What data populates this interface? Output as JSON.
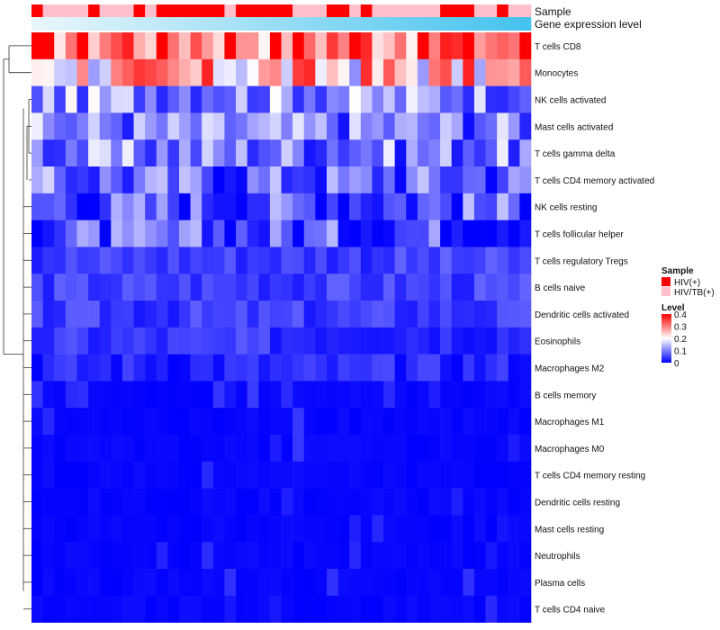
{
  "chart_data": {
    "type": "heatmap",
    "title": "",
    "annotation_tracks": [
      {
        "name": "Sample"
      },
      {
        "name": "Gene expression level"
      }
    ],
    "rows": [
      "T cells CD8",
      "Monocytes",
      "NK cells activated",
      "Mast cells activated",
      "T cells gamma delta",
      "T cells CD4 memory activated",
      "NK cells resting",
      "T cells follicular helper",
      "T cells regulatory  Tregs",
      "B cells naive",
      "Dendritic cells activated",
      "Eosinophils",
      "Macrophages M2",
      "B cells memory",
      "Macrophages M1",
      "Macrophages M0",
      "T cells CD4 memory resting",
      "Dendritic cells resting",
      "Mast cells resting",
      "Neutrophils",
      "Plasma cells",
      "T cells CD4 naive"
    ],
    "n_samples": 44,
    "sample_groups": [
      "HIV(+)",
      "HIV/TB(+)",
      "HIV/TB(+)",
      "HIV/TB(+)",
      "HIV/TB(+)",
      "HIV(+)",
      "HIV/TB(+)",
      "HIV/TB(+)",
      "HIV/TB(+)",
      "HIV(+)",
      "HIV/TB(+)",
      "HIV(+)",
      "HIV(+)",
      "HIV(+)",
      "HIV(+)",
      "HIV(+)",
      "HIV(+)",
      "HIV/TB(+)",
      "HIV(+)",
      "HIV(+)",
      "HIV(+)",
      "HIV(+)",
      "HIV(+)",
      "HIV/TB(+)",
      "HIV/TB(+)",
      "HIV/TB(+)",
      "HIV(+)",
      "HIV(+)",
      "HIV/TB(+)",
      "HIV(+)",
      "HIV/TB(+)",
      "HIV/TB(+)",
      "HIV/TB(+)",
      "HIV/TB(+)",
      "HIV/TB(+)",
      "HIV/TB(+)",
      "HIV(+)",
      "HIV(+)",
      "HIV(+)",
      "HIV/TB(+)",
      "HIV/TB(+)",
      "HIV(+)",
      "HIV/TB(+)",
      "HIV/TB(+)"
    ],
    "row_means": [
      0.34,
      0.24,
      0.12,
      0.1,
      0.1,
      0.08,
      0.07,
      0.06,
      0.05,
      0.05,
      0.045,
      0.04,
      0.03,
      0.025,
      0.02,
      0.02,
      0.012,
      0.01,
      0.005,
      0.005,
      0.015,
      0.01
    ],
    "legend": {
      "sample_title": "Sample",
      "sample_entries": [
        {
          "label": "HIV(+)",
          "color": "#ff0000"
        },
        {
          "label": "HIV/TB(+)",
          "color": "#ffc0cb"
        }
      ],
      "level_title": "Level",
      "level_ticks": [
        "0.4",
        "0.3",
        "0.2",
        "0.1",
        "0"
      ],
      "color_low": "#0000ff",
      "color_mid": "#ffffff",
      "color_high": "#ff0000",
      "range": [
        0,
        0.4
      ]
    },
    "colors": {
      "hiv": "#ff0000",
      "hivtb": "#ffc0cb",
      "expr_low": "#e8f6fb",
      "expr_high": "#46c3ee"
    }
  }
}
